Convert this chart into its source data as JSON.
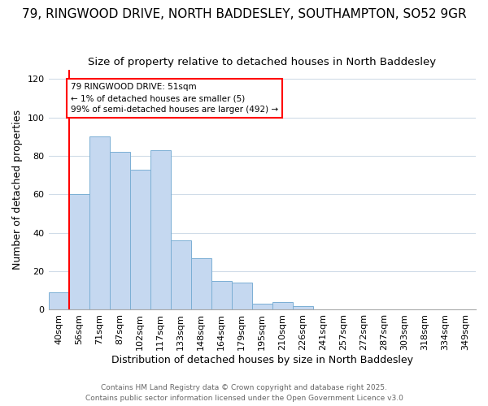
{
  "title": "79, RINGWOOD DRIVE, NORTH BADDESLEY, SOUTHAMPTON, SO52 9GR",
  "subtitle": "Size of property relative to detached houses in North Baddesley",
  "xlabel": "Distribution of detached houses by size in North Baddesley",
  "ylabel": "Number of detached properties",
  "categories": [
    "40sqm",
    "56sqm",
    "71sqm",
    "87sqm",
    "102sqm",
    "117sqm",
    "133sqm",
    "148sqm",
    "164sqm",
    "179sqm",
    "195sqm",
    "210sqm",
    "226sqm",
    "241sqm",
    "257sqm",
    "272sqm",
    "287sqm",
    "303sqm",
    "318sqm",
    "334sqm",
    "349sqm"
  ],
  "values": [
    9,
    60,
    90,
    82,
    73,
    83,
    36,
    27,
    15,
    14,
    3,
    4,
    2,
    0,
    0,
    0,
    0,
    0,
    0,
    0,
    0
  ],
  "bar_color": "#c5d8f0",
  "bar_edge_color": "#7bafd4",
  "annotation_box_text": "79 RINGWOOD DRIVE: 51sqm\n← 1% of detached houses are smaller (5)\n99% of semi-detached houses are larger (492) →",
  "ylim": [
    0,
    125
  ],
  "yticks": [
    0,
    20,
    40,
    60,
    80,
    100,
    120
  ],
  "background_color": "#ffffff",
  "grid_color": "#d0dce8",
  "footer_line1": "Contains HM Land Registry data © Crown copyright and database right 2025.",
  "footer_line2": "Contains public sector information licensed under the Open Government Licence v3.0",
  "title_fontsize": 11,
  "subtitle_fontsize": 9.5,
  "label_fontsize": 9,
  "tick_fontsize": 8,
  "footer_fontsize": 6.5,
  "red_line_x": 1
}
